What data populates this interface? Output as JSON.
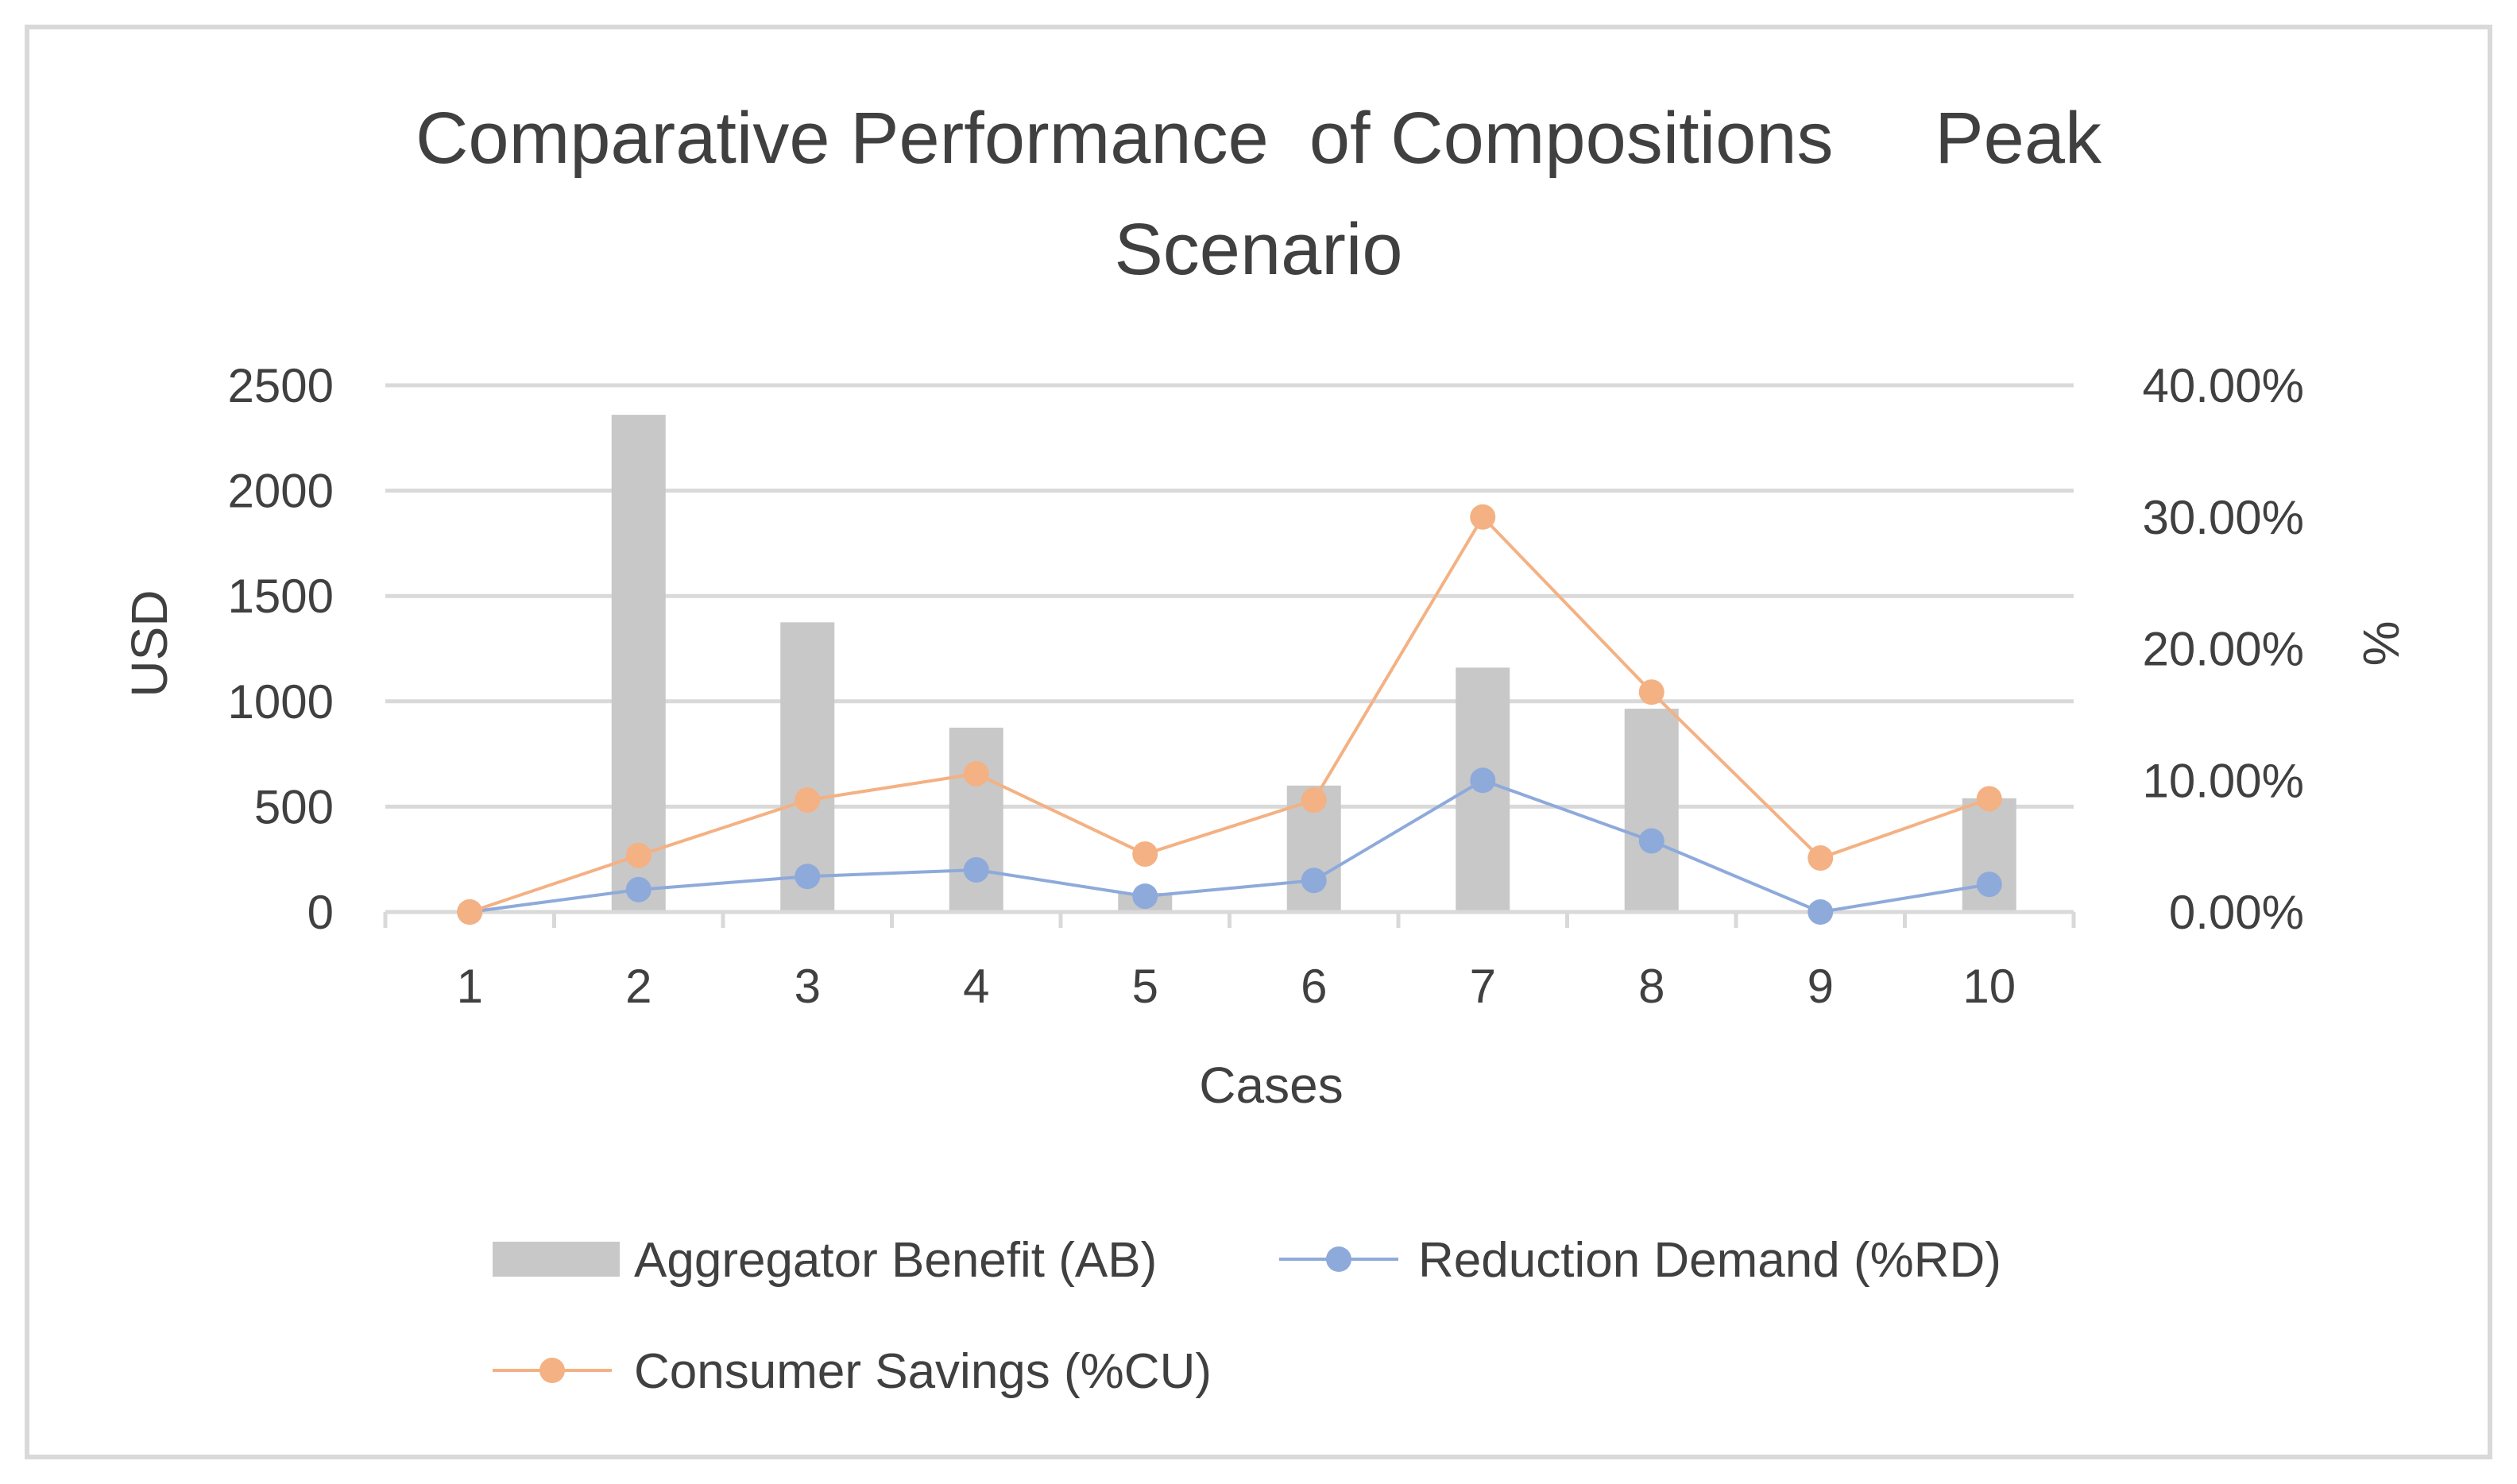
{
  "chart_data": {
    "type": "bar",
    "title_line1": "Comparative Performance  of Compositions     Peak",
    "title_line2": "Scenario",
    "xlabel": "Cases",
    "ylabel_left": "USD",
    "ylabel_right": "%",
    "categories": [
      "1",
      "2",
      "3",
      "4",
      "5",
      "6",
      "7",
      "8",
      "9",
      "10"
    ],
    "y_left_ticks": [
      "0",
      "500",
      "1000",
      "1500",
      "2000",
      "2500"
    ],
    "y_left_range": [
      0,
      2500
    ],
    "y_right_ticks": [
      "0.00%",
      "10.00%",
      "20.00%",
      "30.00%",
      "40.00%"
    ],
    "y_right_range": [
      0,
      0.4
    ],
    "grid": true,
    "legend_position": "bottom",
    "series": [
      {
        "name": "Aggregator Benefit (AB)",
        "kind": "bar",
        "axis": "left",
        "color": "#c8c8c8",
        "values": [
          0,
          2360,
          1375,
          875,
          90,
          600,
          1160,
          965,
          0,
          540
        ]
      },
      {
        "name": "Reduction Demand (%RD)",
        "kind": "line",
        "axis": "right",
        "color": "#8eaadb",
        "values": [
          0.0,
          0.017,
          0.027,
          0.032,
          0.012,
          0.024,
          0.1,
          0.054,
          0.0,
          0.021
        ]
      },
      {
        "name": "Consumer Savings (%CU)",
        "kind": "line",
        "axis": "right",
        "color": "#f4b183",
        "values": [
          0.0,
          0.043,
          0.085,
          0.105,
          0.044,
          0.085,
          0.3,
          0.167,
          0.041,
          0.086
        ]
      }
    ]
  }
}
